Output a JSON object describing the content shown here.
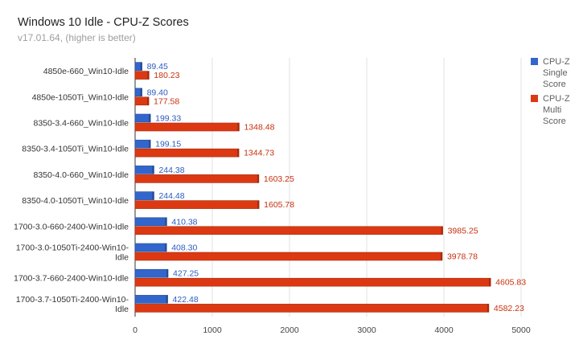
{
  "colors": {
    "single": "#3366cc",
    "multi": "#dc3912"
  },
  "chart_data": {
    "type": "bar",
    "orientation": "horizontal",
    "title": "Windows 10 Idle - CPU-Z Scores",
    "subtitle": "v17.01.64, (higher is better)",
    "categories": [
      "4850e-660_Win10-Idle",
      "4850e-1050Ti_Win10-Idle",
      "8350-3.4-660_Win10-Idle",
      "8350-3.4-1050Ti_Win10-Idle",
      "8350-4.0-660_Win10-Idle",
      "8350-4.0-1050Ti_Win10-Idle",
      "1700-3.0-660-2400-Win10-Idle",
      "1700-3.0-1050Ti-2400-Win10-Idle",
      "1700-3.7-660-2400-Win10-Idle",
      "1700-3.7-1050Ti-2400-Win10-Idle"
    ],
    "series": [
      {
        "name": "CPU-Z Single Score",
        "values": [
          89.45,
          89.4,
          199.33,
          199.15,
          244.38,
          244.48,
          410.38,
          408.3,
          427.25,
          422.48
        ]
      },
      {
        "name": "CPU-Z Multi Score",
        "values": [
          180.23,
          177.58,
          1348.48,
          1344.73,
          1603.25,
          1605.78,
          3985.25,
          3978.78,
          4605.83,
          4582.23
        ]
      }
    ],
    "value_labels": {
      "single": [
        "89.45",
        "89.40",
        "199.33",
        "199.15",
        "244.38",
        "244.48",
        "410.38",
        "408.30",
        "427.25",
        "422.48"
      ],
      "multi": [
        "180.23",
        "177.58",
        "1348.48",
        "1344.73",
        "1603.25",
        "1605.78",
        "3985.25",
        "3978.78",
        "4605.83",
        "4582.23"
      ]
    },
    "xlim": [
      0,
      5000
    ],
    "ticks": [
      0,
      1000,
      2000,
      3000,
      4000,
      5000
    ],
    "tick_labels": [
      "0",
      "1000",
      "2000",
      "3000",
      "4000",
      "5000"
    ],
    "grid": true,
    "legend": "right"
  }
}
